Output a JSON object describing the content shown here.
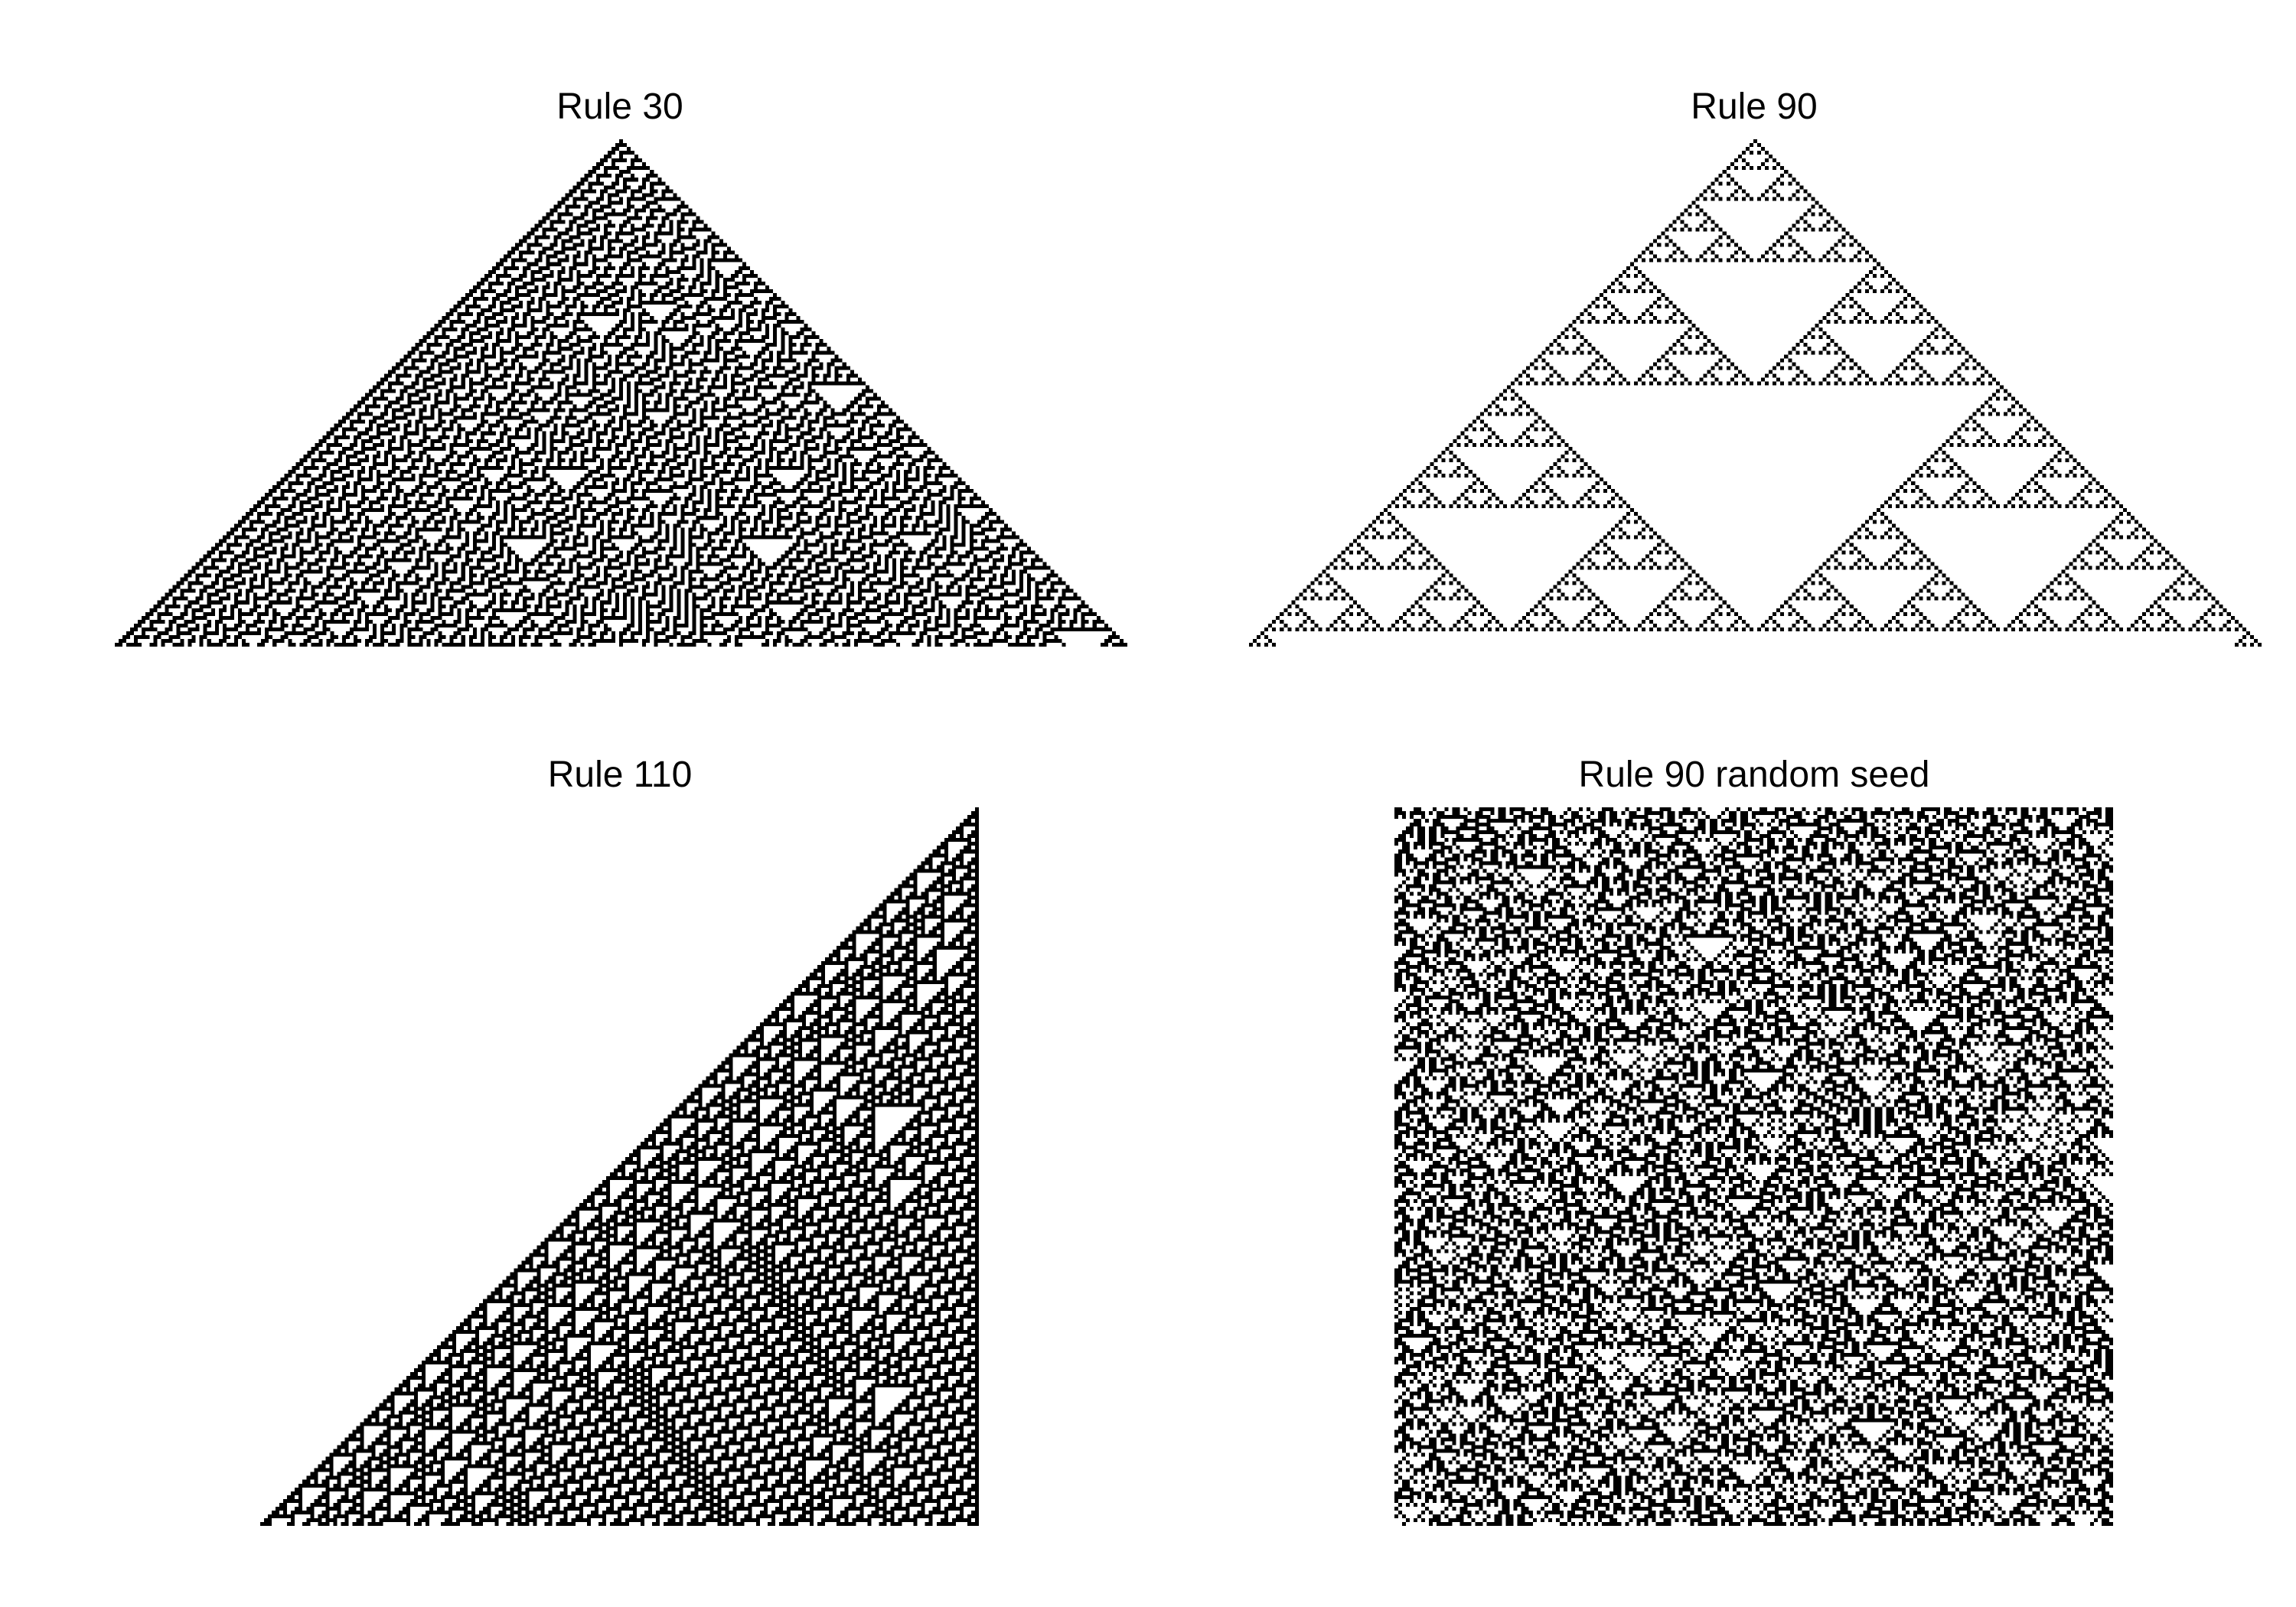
{
  "figure": {
    "panels": [
      {
        "id": "rule30",
        "title": "Rule 30",
        "rule": 30,
        "seed": "single-center",
        "width_cells": 263,
        "steps": 132,
        "triangle": "isosceles"
      },
      {
        "id": "rule90",
        "title": "Rule 90",
        "rule": 90,
        "seed": "single-center",
        "width_cells": 263,
        "steps": 132,
        "triangle": "isosceles"
      },
      {
        "id": "rule110",
        "title": "Rule 110",
        "rule": 110,
        "seed": "single-right",
        "width_cells": 187,
        "steps": 187,
        "triangle": "right"
      },
      {
        "id": "rule90-random",
        "title": "Rule 90 random seed",
        "rule": 90,
        "seed": "random",
        "width_cells": 187,
        "steps": 187,
        "triangle": "none"
      }
    ],
    "colors": {
      "on": "#000000",
      "off": "#ffffff"
    }
  }
}
